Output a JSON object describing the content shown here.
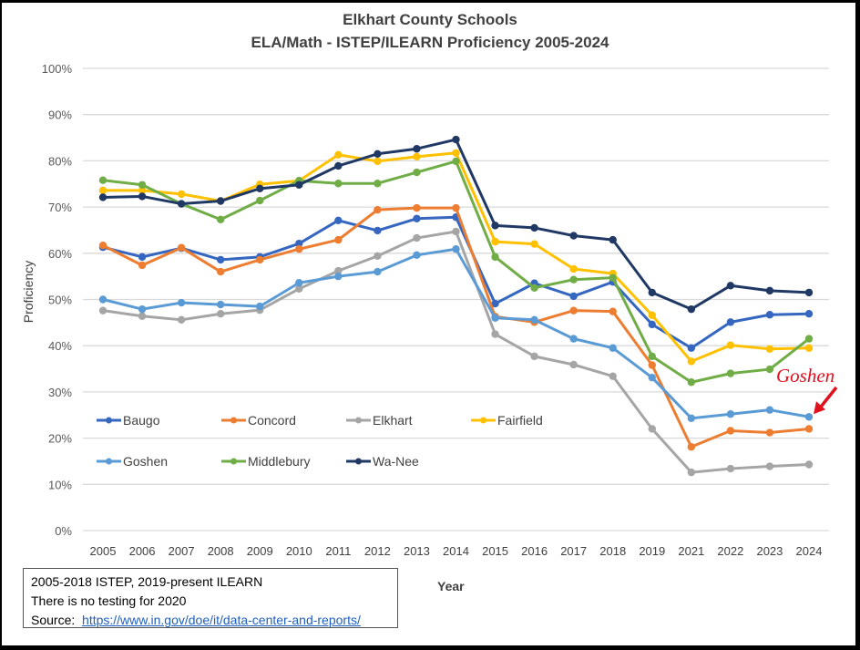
{
  "chart_data": {
    "type": "line",
    "title": "Elkhart County Schools",
    "subtitle": "ELA/Math - ISTEP/ILEARN Proficiency 2005-2024",
    "xlabel": "Year",
    "ylabel": "Proficiency",
    "ylim": [
      0,
      100
    ],
    "yticks": [
      "0%",
      "10%",
      "20%",
      "30%",
      "40%",
      "50%",
      "60%",
      "70%",
      "80%",
      "90%",
      "100%"
    ],
    "grid": true,
    "legend_position": "inside-lower-left",
    "categories": [
      "2005",
      "2006",
      "2007",
      "2008",
      "2009",
      "2010",
      "2011",
      "2012",
      "2013",
      "2014",
      "2015",
      "2016",
      "2017",
      "2018",
      "2019",
      "2021",
      "2022",
      "2023",
      "2024"
    ],
    "series": [
      {
        "name": "Baugo",
        "color": "#3566c0",
        "values": [
          61.3,
          59.2,
          61.1,
          58.6,
          59.2,
          62.1,
          67.1,
          64.9,
          67.5,
          67.8,
          49.1,
          53.5,
          50.7,
          53.8,
          44.6,
          39.5,
          45.1,
          46.7,
          46.9
        ]
      },
      {
        "name": "Concord",
        "color": "#ed7d31",
        "values": [
          61.7,
          57.4,
          61.2,
          56.0,
          58.6,
          60.9,
          62.9,
          69.4,
          69.8,
          69.8,
          46.3,
          45.1,
          47.6,
          47.4,
          35.8,
          18.1,
          21.6,
          21.2,
          22.0
        ]
      },
      {
        "name": "Elkhart",
        "color": "#a5a5a5",
        "values": [
          47.6,
          46.4,
          45.6,
          46.9,
          47.7,
          52.3,
          56.2,
          59.4,
          63.3,
          64.7,
          42.5,
          37.7,
          35.9,
          33.4,
          22.0,
          12.6,
          13.4,
          13.9,
          14.3
        ]
      },
      {
        "name": "Fairfield",
        "color": "#ffc000",
        "values": [
          73.6,
          73.6,
          72.8,
          71.3,
          74.9,
          75.7,
          81.3,
          79.9,
          80.9,
          81.7,
          62.5,
          62.0,
          56.6,
          55.6,
          46.6,
          36.6,
          40.1,
          39.3,
          39.5
        ]
      },
      {
        "name": "Goshen",
        "color": "#5b9bd5",
        "values": [
          50.0,
          47.9,
          49.3,
          48.9,
          48.5,
          53.6,
          55.0,
          56.0,
          59.6,
          60.9,
          46.0,
          45.6,
          41.5,
          39.5,
          33.1,
          24.3,
          25.2,
          26.1,
          24.6
        ]
      },
      {
        "name": "Middlebury",
        "color": "#70ad47",
        "values": [
          75.8,
          74.8,
          70.7,
          67.3,
          71.4,
          75.7,
          75.1,
          75.1,
          77.5,
          79.9,
          59.2,
          52.5,
          54.3,
          54.7,
          37.7,
          32.1,
          34.0,
          34.9,
          41.5
        ]
      },
      {
        "name": "Wa-Nee",
        "color": "#203864",
        "values": [
          72.1,
          72.3,
          70.7,
          71.3,
          74.0,
          74.8,
          78.9,
          81.5,
          82.6,
          84.6,
          66.0,
          65.5,
          63.8,
          62.9,
          51.5,
          47.9,
          53.0,
          51.9,
          51.5
        ]
      }
    ],
    "annotations": [
      {
        "text": "Goshen",
        "color": "#e0101e",
        "points_to": {
          "series": "Goshen",
          "category": "2024"
        }
      }
    ]
  },
  "notes": {
    "line1": "2005-2018 ISTEP, 2019-present ILEARN",
    "line2": "There is no testing for 2020",
    "source_label": "Source:",
    "source_link": "https://www.in.gov/doe/it/data-center-and-reports/"
  }
}
